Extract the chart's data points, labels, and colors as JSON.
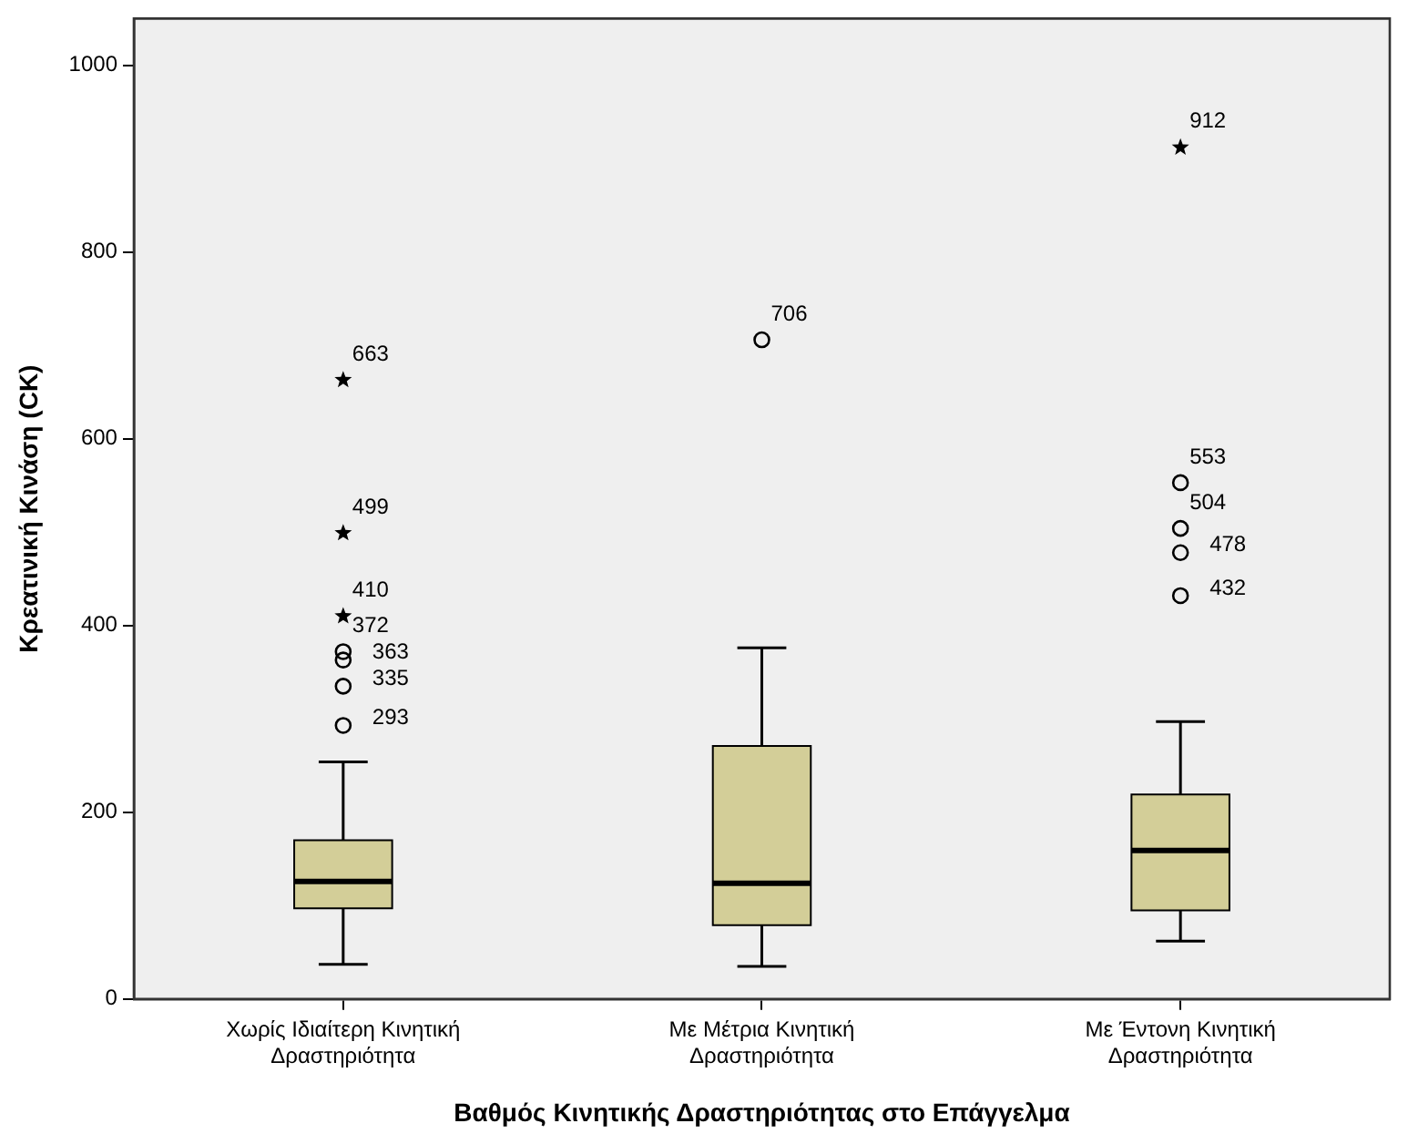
{
  "chart_data": {
    "type": "box",
    "xlabel": "Βαθμός Κινητικής Δραστηριότητας στο Επάγγελμα",
    "ylabel": "Κρεατινική Κινάση (CK)",
    "categories": [
      "Χωρίς Ιδιαίτερη Κινητική Δραστηριότητα",
      "Με Μέτρια Κινητική Δραστηριότητα",
      "Με Έντονη Κινητική Δραστηριότητα"
    ],
    "ylim": [
      0,
      1050
    ],
    "yticks": [
      0,
      200,
      400,
      600,
      800,
      1000
    ],
    "grid": false,
    "series": [
      {
        "type": "box",
        "color": "#d3ce98",
        "boxes": [
          {
            "low": 37,
            "q1": 97,
            "median": 126,
            "q3": 170,
            "high": 254
          },
          {
            "low": 35,
            "q1": 79,
            "median": 124,
            "q3": 271,
            "high": 376
          },
          {
            "low": 62,
            "q1": 95,
            "median": 159,
            "q3": 219,
            "high": 297
          }
        ]
      },
      {
        "type": "scatter",
        "color": "#000000",
        "marker": "circle",
        "x": [
          "Χωρίς Ιδιαίτερη Κινητική Δραστηριότητα",
          "Χωρίς Ιδιαίτερη Κινητική Δραστηριότητα",
          "Χωρίς Ιδιαίτερη Κινητική Δραστηριότητα",
          "Χωρίς Ιδιαίτερη Κινητική Δραστηριότητα",
          "Με Μέτρια Κινητική Δραστηριότητα",
          "Με Έντονη Κινητική Δραστηριότητα",
          "Με Έντονη Κινητική Δραστηριότητα",
          "Με Έντονη Κινητική Δραστηριότητα",
          "Με Έντονη Κινητική Δραστηριότητα"
        ],
        "values": [
          293,
          335,
          363,
          372,
          706,
          432,
          478,
          504,
          553
        ]
      },
      {
        "type": "scatter",
        "color": "#000000",
        "marker": "star",
        "x": [
          "Χωρίς Ιδιαίτερη Κινητική Δραστηριότητα",
          "Χωρίς Ιδιαίτερη Κινητική Δραστηριότητα",
          "Χωρίς Ιδιαίτερη Κινητική Δραστηριότητα",
          "Με Έντονη Κινητική Δραστηριότητα"
        ],
        "values": [
          410,
          499,
          663,
          912
        ]
      }
    ],
    "annotations": [
      {
        "text": "663",
        "x": "Χωρίς Ιδιαίτερη Κινητική Δραστηριότητα",
        "y": 663
      },
      {
        "text": "499",
        "x": "Χωρίς Ιδιαίτερη Κινητική Δραστηριότητα",
        "y": 499
      },
      {
        "text": "410",
        "x": "Χωρίς Ιδιαίτερη Κινητική Δραστηριότητα",
        "y": 410
      },
      {
        "text": "372",
        "x": "Χωρίς Ιδιαίτερη Κινητική Δραστηριότητα",
        "y": 372
      },
      {
        "text": "363",
        "x": "Χωρίς Ιδιαίτερη Κινητική Δραστηριότητα",
        "y": 363
      },
      {
        "text": "335",
        "x": "Χωρίς Ιδιαίτερη Κινητική Δραστηριότητα",
        "y": 335
      },
      {
        "text": "293",
        "x": "Χωρίς Ιδιαίτερη Κινητική Δραστηριότητα",
        "y": 293
      },
      {
        "text": "706",
        "x": "Με Μέτρια Κινητική Δραστηριότητα",
        "y": 706
      },
      {
        "text": "912",
        "x": "Με Έντονη Κινητική Δραστηριότητα",
        "y": 912
      },
      {
        "text": "553",
        "x": "Με Έντονη Κινητική Δραστηριότητα",
        "y": 553
      },
      {
        "text": "504",
        "x": "Με Έντονη Κινητική Δραστηριότητα",
        "y": 504
      },
      {
        "text": "478",
        "x": "Με Έντονη Κινητική Δραστηριότητα",
        "y": 478
      },
      {
        "text": "432",
        "x": "Με Έντονη Κινητική Δραστηριότητα",
        "y": 432
      }
    ]
  }
}
